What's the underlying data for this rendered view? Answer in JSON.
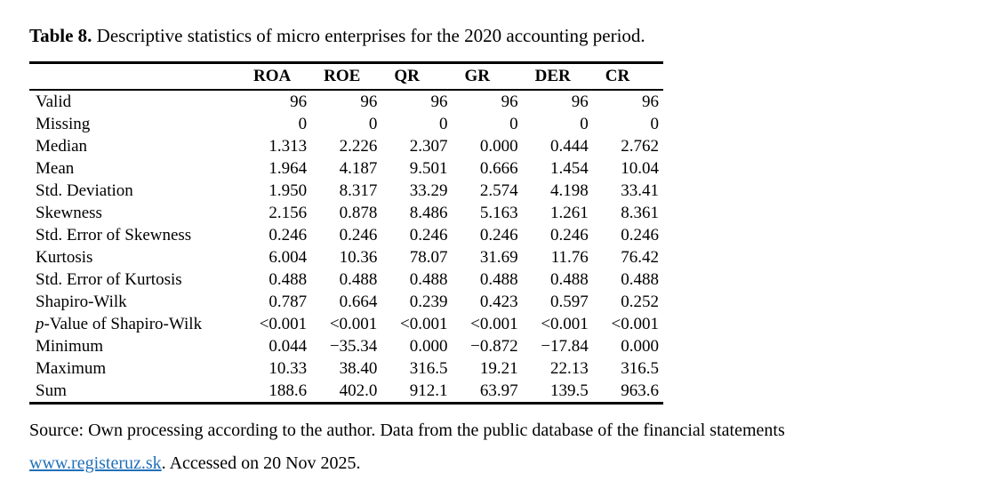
{
  "caption": {
    "label": "Table 8.",
    "text": " Descriptive statistics of micro enterprises for the 2020 accounting period."
  },
  "table": {
    "corner_header": "",
    "columns": [
      "ROA",
      "ROE",
      "QR",
      "GR",
      "DER",
      "CR"
    ],
    "rows": [
      {
        "label": "Valid",
        "values": [
          "96",
          "96",
          "96",
          "96",
          "96",
          "96"
        ]
      },
      {
        "label": "Missing",
        "values": [
          "0",
          "0",
          "0",
          "0",
          "0",
          "0"
        ]
      },
      {
        "label": "Median",
        "values": [
          "1.313",
          "2.226",
          "2.307",
          "0.000",
          "0.444",
          "2.762"
        ]
      },
      {
        "label": "Mean",
        "values": [
          "1.964",
          "4.187",
          "9.501",
          "0.666",
          "1.454",
          "10.04"
        ]
      },
      {
        "label": "Std. Deviation",
        "values": [
          "1.950",
          "8.317",
          "33.29",
          "2.574",
          "4.198",
          "33.41"
        ]
      },
      {
        "label": "Skewness",
        "values": [
          "2.156",
          "0.878",
          "8.486",
          "5.163",
          "1.261",
          "8.361"
        ]
      },
      {
        "label": "Std. Error of Skewness",
        "values": [
          "0.246",
          "0.246",
          "0.246",
          "0.246",
          "0.246",
          "0.246"
        ]
      },
      {
        "label": "Kurtosis",
        "values": [
          "6.004",
          "10.36",
          "78.07",
          "31.69",
          "11.76",
          "76.42"
        ]
      },
      {
        "label": "Std. Error of Kurtosis",
        "values": [
          "0.488",
          "0.488",
          "0.488",
          "0.488",
          "0.488",
          "0.488"
        ]
      },
      {
        "label": "Shapiro-Wilk",
        "values": [
          "0.787",
          "0.664",
          "0.239",
          "0.423",
          "0.597",
          "0.252"
        ]
      },
      {
        "label": "p-Value of Shapiro-Wilk",
        "italic_first_char": true,
        "values": [
          "<0.001",
          "<0.001",
          "<0.001",
          "<0.001",
          "<0.001",
          "<0.001"
        ]
      },
      {
        "label": "Minimum",
        "values": [
          "0.044",
          "−35.34",
          "0.000",
          "−0.872",
          "−17.84",
          "0.000"
        ]
      },
      {
        "label": "Maximum",
        "values": [
          "10.33",
          "38.40",
          "316.5",
          "19.21",
          "22.13",
          "316.5"
        ]
      },
      {
        "label": "Sum",
        "values": [
          "188.6",
          "402.0",
          "912.1",
          "63.97",
          "139.5",
          "963.6"
        ]
      }
    ]
  },
  "source": {
    "line1": "Source: Own processing according to the author. Data from the public database of the financial statements",
    "link_text": "www.registeruz.sk",
    "line2_rest": ". Accessed on 20 Nov 2025."
  },
  "colors": {
    "text": "#000000",
    "background": "#ffffff",
    "link": "#2170b8",
    "table_rule": "#000000"
  }
}
